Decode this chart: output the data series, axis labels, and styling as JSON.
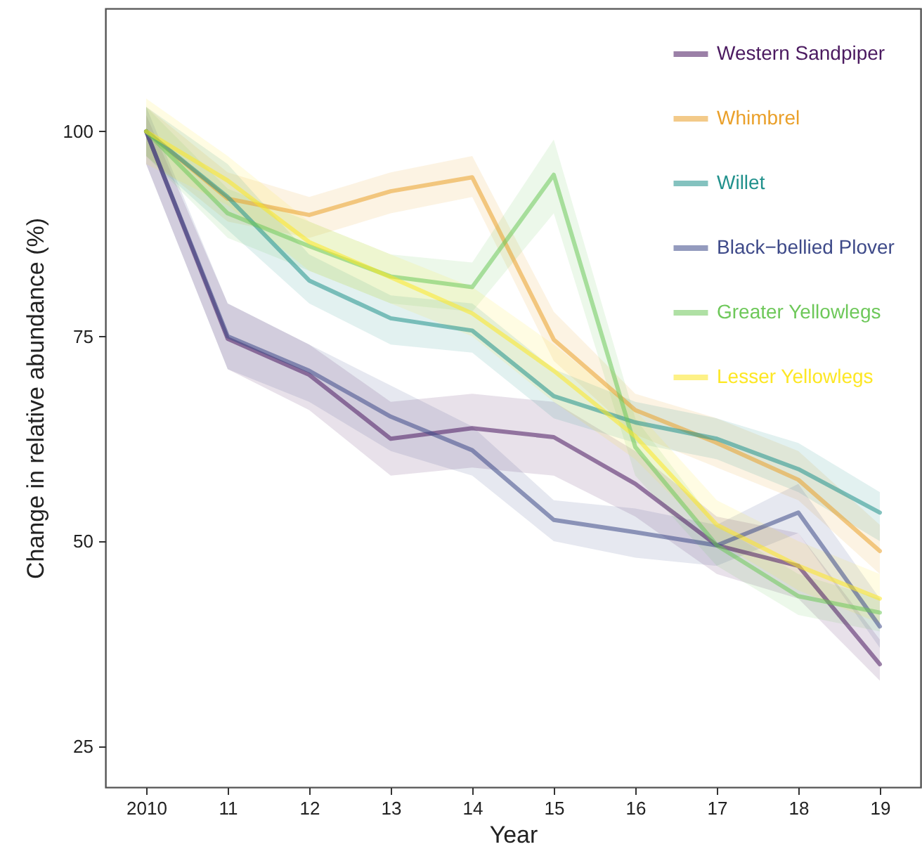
{
  "chart_data": {
    "type": "line",
    "xlabel": "Year",
    "ylabel": "Change in relative abundance (%)",
    "x": [
      2010,
      2011,
      2012,
      2013,
      2014,
      2015,
      2016,
      2017,
      2018,
      2019
    ],
    "xlim": [
      2009.5,
      2019.5
    ],
    "ylim": [
      20,
      115
    ],
    "xticks": [
      2010,
      {
        "value": 2011,
        "label": "11"
      },
      {
        "value": 2012,
        "label": "12"
      },
      {
        "value": 2013,
        "label": "13"
      },
      {
        "value": 2014,
        "label": "14"
      },
      {
        "value": 2015,
        "label": "15"
      },
      {
        "value": 2016,
        "label": "16"
      },
      {
        "value": 2017,
        "label": "17"
      },
      {
        "value": 2018,
        "label": "18"
      },
      {
        "value": 2019,
        "label": "19"
      }
    ],
    "yticks": [
      25,
      50,
      75,
      100
    ],
    "grid": false,
    "legend": "top right",
    "line_style": "solid",
    "series": [
      {
        "name": "Western Sandpiper",
        "color": "#4b1a60",
        "values": [
          100,
          74.7,
          70.3,
          62.5,
          63.8,
          62.7,
          57,
          49.5,
          47,
          35
        ],
        "lower": [
          96,
          71,
          66,
          58,
          59,
          58,
          53,
          46,
          43,
          33
        ],
        "upper": [
          102,
          79,
          74,
          67,
          68,
          67,
          61,
          53,
          51,
          38
        ]
      },
      {
        "name": "Whimbrel",
        "color": "#eaa02a",
        "values": [
          100,
          91.8,
          89.8,
          92.7,
          94.4,
          74.6,
          66,
          62,
          57.5,
          48.8
        ],
        "lower": [
          97,
          89,
          87,
          90,
          92,
          72,
          63,
          59,
          55,
          46
        ],
        "upper": [
          103,
          95,
          92,
          95,
          97,
          78,
          68,
          65,
          61,
          52
        ]
      },
      {
        "name": "Willet",
        "color": "#21918c",
        "values": [
          100,
          92,
          81.8,
          77.2,
          75.7,
          67.7,
          64.5,
          62.5,
          58.8,
          53.5
        ],
        "lower": [
          97,
          88,
          79,
          74,
          73,
          65,
          62,
          60,
          56,
          50
        ],
        "upper": [
          103,
          96,
          85,
          80,
          79,
          71,
          67,
          65,
          62,
          56
        ]
      },
      {
        "name": "Black−bellied Plover",
        "color": "#3e4a89",
        "values": [
          100,
          75,
          70.8,
          65.2,
          61.1,
          52.6,
          51.1,
          49.5,
          53.5,
          39.6
        ],
        "lower": [
          96,
          71,
          67,
          61,
          58,
          50,
          48,
          47,
          51,
          37
        ],
        "upper": [
          103,
          79,
          74,
          69,
          64,
          55,
          54,
          52,
          57,
          43
        ]
      },
      {
        "name": "Greater Yellowlegs",
        "color": "#6ec85a",
        "values": [
          100,
          90,
          86,
          82.3,
          81,
          94.7,
          61.5,
          49.5,
          43.3,
          41.3
        ],
        "lower": [
          97,
          87,
          83,
          79,
          78,
          90,
          58,
          47,
          41,
          39
        ],
        "upper": [
          103,
          93,
          89,
          85,
          84,
          99,
          65,
          52,
          46,
          43
        ]
      },
      {
        "name": "Lesser Yellowlegs",
        "color": "#fde725",
        "values": [
          100,
          94,
          86.5,
          82.2,
          77.8,
          70.8,
          62.8,
          52,
          47,
          43
        ],
        "lower": [
          96,
          91,
          83,
          79,
          75,
          67,
          60,
          50,
          44,
          40
        ],
        "upper": [
          104,
          97,
          89,
          85,
          81,
          74,
          66,
          55,
          50,
          46
        ]
      }
    ]
  }
}
